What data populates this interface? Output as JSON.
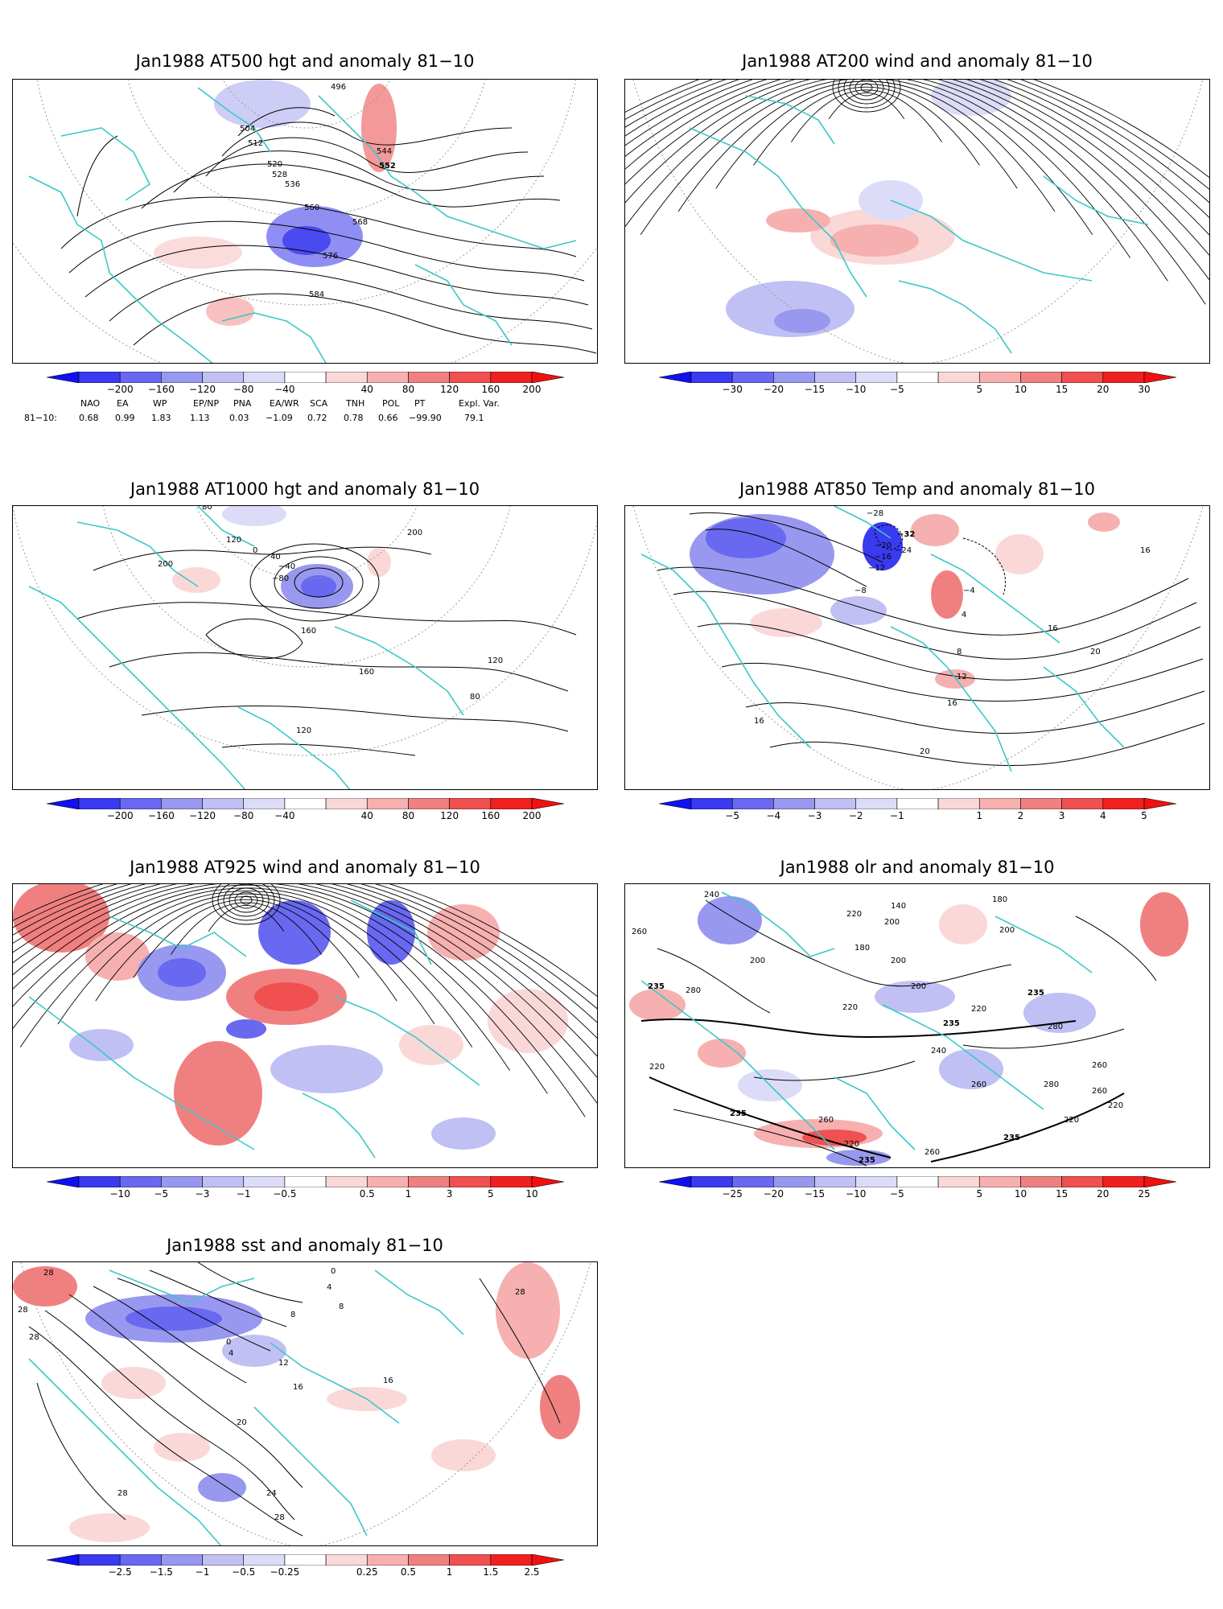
{
  "panels": [
    {
      "id": "p1",
      "title": "Jan1988 AT500 hgt and anomaly 81−10",
      "kind": "hgt",
      "colorbar": [
        "−200",
        "−160",
        "−120",
        "−80",
        "−40",
        "40",
        "80",
        "120",
        "160",
        "200"
      ],
      "contour_labels": [
        "496",
        "504",
        "512",
        "520",
        "528",
        "536",
        "544",
        "552",
        "560",
        "568",
        "576",
        "584"
      ]
    },
    {
      "id": "p2",
      "title": "Jan1988 AT200 wind and anomaly 81−10",
      "kind": "wind",
      "colorbar": [
        "−30",
        "−20",
        "−15",
        "−10",
        "−5",
        "5",
        "10",
        "15",
        "20",
        "30"
      ],
      "contour_labels": []
    },
    {
      "id": "p3",
      "title": "Jan1988 AT1000 hgt and anomaly 81−10",
      "kind": "hgt1000",
      "colorbar": [
        "−200",
        "−160",
        "−120",
        "−80",
        "−40",
        "40",
        "80",
        "120",
        "160",
        "200"
      ],
      "contour_labels": [
        "80",
        "120",
        "200",
        "0",
        "40",
        "−40",
        "−80",
        "160",
        "200",
        "160",
        "120",
        "120",
        "80"
      ]
    },
    {
      "id": "p4",
      "title": "Jan1988 AT850 Temp and anomaly 81−10",
      "kind": "temp",
      "colorbar": [
        "−5",
        "−4",
        "−3",
        "−2",
        "−1",
        "1",
        "2",
        "3",
        "4",
        "5"
      ],
      "contour_labels": [
        "−28",
        "−32",
        "−24",
        "−20",
        "−16",
        "−12",
        "−8",
        "−4",
        "4",
        "8",
        "12",
        "16",
        "20",
        "16",
        "16",
        "16",
        "20"
      ]
    },
    {
      "id": "p5",
      "title": "Jan1988 AT925 wind and anomaly 81−10",
      "kind": "wind925",
      "colorbar": [
        "−10",
        "−5",
        "−3",
        "−1",
        "−0.5",
        "0.5",
        "1",
        "3",
        "5",
        "10"
      ],
      "contour_labels": []
    },
    {
      "id": "p6",
      "title": "Jan1988 olr and anomaly 81−10",
      "kind": "olr",
      "colorbar": [
        "−25",
        "−20",
        "−15",
        "−10",
        "−5",
        "5",
        "10",
        "15",
        "20",
        "25"
      ],
      "contour_labels": [
        "240",
        "140",
        "200",
        "220",
        "180",
        "260",
        "200",
        "180",
        "200",
        "235",
        "280",
        "220",
        "200",
        "200",
        "235",
        "220",
        "235",
        "280",
        "260",
        "240",
        "260",
        "280",
        "260",
        "220",
        "235",
        "220",
        "260",
        "235",
        "220",
        "235",
        "220",
        "260"
      ]
    },
    {
      "id": "p7",
      "title": "Jan1988 sst and anomaly 81−10",
      "kind": "sst",
      "colorbar": [
        "−2.5",
        "−1.5",
        "−1",
        "−0.5",
        "−0.25",
        "0.25",
        "0.5",
        "1",
        "1.5",
        "2.5"
      ],
      "contour_labels": [
        "28",
        "28",
        "28",
        "0",
        "4",
        "8",
        "12",
        "16",
        "20",
        "24",
        "28",
        "28",
        "28",
        "16",
        "8",
        "4",
        "0"
      ]
    }
  ],
  "teleconnection": {
    "headers": [
      "NAO",
      "EA",
      "WP",
      "EP/NP",
      "PNA",
      "EA/WR",
      "SCA",
      "TNH",
      "POL",
      "PT",
      "Expl. Var."
    ],
    "row_label": "81−10:",
    "values": [
      "0.68",
      "0.99",
      "1.83",
      "1.13",
      "0.03",
      "−1.09",
      "0.72",
      "0.78",
      "0.66",
      "−99.90",
      "79.1"
    ]
  },
  "colors": {
    "coast": "#3cc8c8",
    "blues": [
      "#3a3af0",
      "#6868f0",
      "#9898f0",
      "#c0c0f4",
      "#dcdcf8"
    ],
    "reds": [
      "#fad8d8",
      "#f6b0b0",
      "#f08080",
      "#f05050",
      "#f02020"
    ]
  }
}
